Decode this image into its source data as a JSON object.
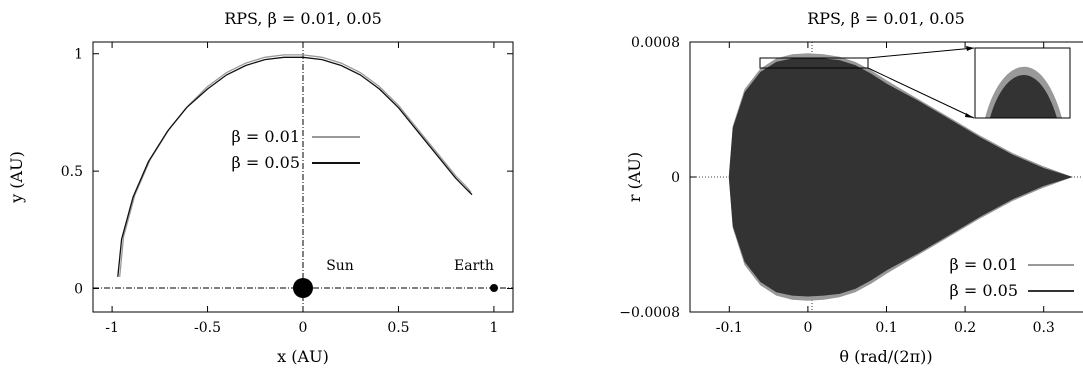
{
  "chart_data": [
    {
      "type": "line",
      "title": "RPS, β = 0.01, 0.05",
      "xlabel": "x (AU)",
      "ylabel": "y (AU)",
      "xlim": [
        -1.1,
        1.1
      ],
      "ylim": [
        -0.1,
        1.05
      ],
      "x_ticks": [
        -1,
        -0.5,
        0,
        0.5,
        1
      ],
      "y_ticks": [
        0,
        0.5,
        1
      ],
      "x_tick_labels": [
        "-1",
        "-0.5",
        "0",
        "0.5",
        "1"
      ],
      "y_tick_labels": [
        "0",
        "0.5",
        "1"
      ],
      "legend_position": "center",
      "series": [
        {
          "name": "β = 0.01",
          "color": "#999999",
          "x": [
            -0.96,
            -0.94,
            -0.88,
            -0.8,
            -0.7,
            -0.6,
            -0.5,
            -0.4,
            -0.3,
            -0.2,
            -0.1,
            0.0,
            0.1,
            0.2,
            0.3,
            0.4,
            0.5,
            0.6,
            0.7,
            0.8,
            0.86,
            0.88
          ],
          "y": [
            0.05,
            0.22,
            0.4,
            0.55,
            0.68,
            0.78,
            0.86,
            0.92,
            0.96,
            0.985,
            0.995,
            0.995,
            0.985,
            0.96,
            0.92,
            0.86,
            0.78,
            0.68,
            0.58,
            0.48,
            0.43,
            0.41
          ]
        },
        {
          "name": "β = 0.05",
          "color": "#111111",
          "x": [
            -0.97,
            -0.95,
            -0.89,
            -0.81,
            -0.71,
            -0.61,
            -0.5,
            -0.4,
            -0.3,
            -0.2,
            -0.1,
            0.0,
            0.1,
            0.2,
            0.3,
            0.4,
            0.5,
            0.6,
            0.7,
            0.8,
            0.86,
            0.885
          ],
          "y": [
            0.05,
            0.21,
            0.39,
            0.54,
            0.67,
            0.77,
            0.85,
            0.91,
            0.95,
            0.975,
            0.985,
            0.985,
            0.975,
            0.95,
            0.91,
            0.85,
            0.77,
            0.67,
            0.57,
            0.47,
            0.42,
            0.4
          ]
        }
      ],
      "annotations": [
        {
          "text": "Sun",
          "x": 0,
          "y": 0
        },
        {
          "text": "Earth",
          "x": 1,
          "y": 0
        }
      ]
    },
    {
      "type": "area",
      "title": "RPS, β = 0.01, 0.05",
      "xlabel": "θ (rad/(2π))",
      "ylabel": "r (AU)",
      "xlim": [
        -0.15,
        0.35
      ],
      "ylim": [
        -0.0008,
        0.0008
      ],
      "x_ticks": [
        -0.1,
        0,
        0.1,
        0.2,
        0.3
      ],
      "y_ticks": [
        -0.0008,
        0,
        0.0008
      ],
      "x_tick_labels": [
        "-0.1",
        "0",
        "0.1",
        "0.2",
        "0.3"
      ],
      "y_tick_labels": [
        "−0.0008",
        "0",
        "0.0008"
      ],
      "legend_position": "bottom-right",
      "series": [
        {
          "name": "β = 0.01",
          "color": "#999999",
          "theta": [
            -0.1,
            -0.095,
            -0.08,
            -0.06,
            -0.04,
            -0.02,
            0.0,
            0.02,
            0.04,
            0.06,
            0.08,
            0.1,
            0.14,
            0.18,
            0.22,
            0.26,
            0.3,
            0.335
          ],
          "r_max": [
            0.0,
            0.0003,
            0.00052,
            0.00064,
            0.0007,
            0.000725,
            0.00073,
            0.000725,
            0.00071,
            0.00068,
            0.00063,
            0.00057,
            0.00046,
            0.00035,
            0.00024,
            0.00014,
            6e-05,
            0.0
          ]
        },
        {
          "name": "β = 0.05",
          "color": "#333333",
          "theta": [
            -0.1,
            -0.095,
            -0.08,
            -0.06,
            -0.04,
            -0.02,
            0.0,
            0.02,
            0.04,
            0.06,
            0.08,
            0.1,
            0.14,
            0.18,
            0.22,
            0.26,
            0.3,
            0.335
          ],
          "r_max": [
            0.0,
            0.00029,
            0.0005,
            0.00062,
            0.00068,
            0.0007,
            0.000705,
            0.0007,
            0.00069,
            0.00066,
            0.00061,
            0.00055,
            0.00045,
            0.00034,
            0.00023,
            0.00013,
            5e-05,
            0.0
          ]
        }
      ]
    }
  ]
}
